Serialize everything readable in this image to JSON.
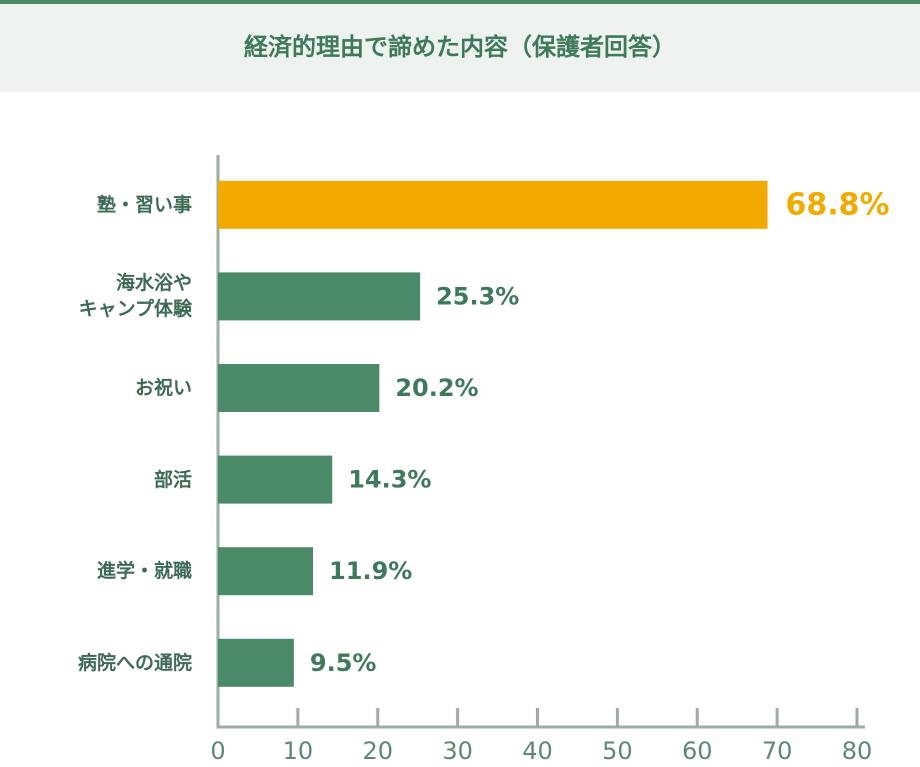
{
  "chart_data": {
    "type": "barh",
    "title": "経済的理由で諦めた内容（保護者回答）",
    "categories": [
      "塾・習い事",
      "海水浴や\nキャンプ体験",
      "お祝い",
      "部活",
      "進学・就職",
      "病院への通院"
    ],
    "values": [
      68.8,
      25.3,
      20.2,
      14.3,
      11.9,
      9.5
    ],
    "value_labels": [
      "68.8%",
      "25.3%",
      "20.2%",
      "14.3%",
      "11.9%",
      "9.5%"
    ],
    "colors": [
      "#f2a900",
      "#4b8a69",
      "#4b8a69",
      "#4b8a69",
      "#4b8a69",
      "#4b8a69"
    ],
    "xlim": [
      0,
      80
    ],
    "xticks": [
      0,
      10,
      20,
      30,
      40,
      50,
      60,
      70,
      80
    ]
  }
}
